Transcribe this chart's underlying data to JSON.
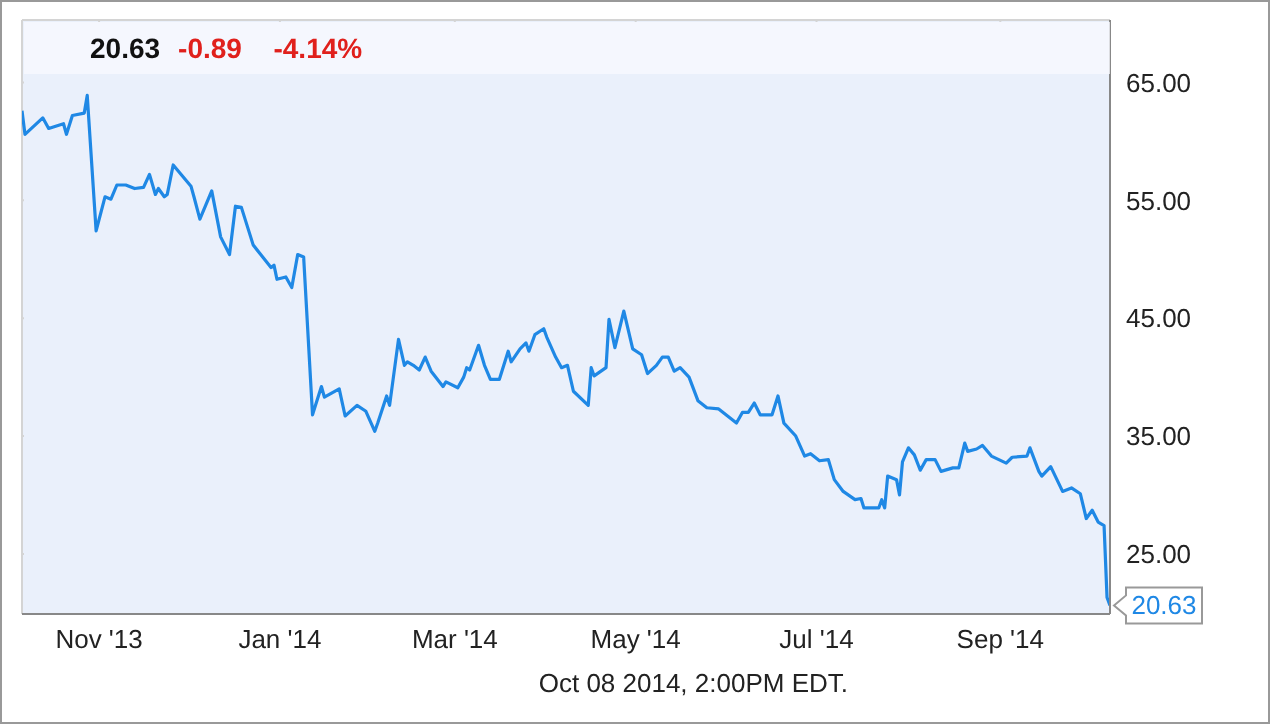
{
  "chart_data": {
    "type": "line",
    "title": "20.63",
    "subtitle": "-0.89  -4.14%",
    "annotations": [
      {
        "text": "20.63",
        "x": "2014-10-08",
        "y": 20.63
      },
      "Oct 08 2014, 2:00PM EDT."
    ],
    "x": [
      "2013-10-06",
      "2013-10-07",
      "2013-10-13",
      "2013-10-15",
      "2013-10-20",
      "2013-10-21",
      "2013-10-23",
      "2013-10-27",
      "2013-10-28",
      "2013-10-31",
      "2013-11-03",
      "2013-11-05",
      "2013-11-07",
      "2013-11-10",
      "2013-11-13",
      "2013-11-16",
      "2013-11-18",
      "2013-11-20",
      "2013-11-21",
      "2013-11-23",
      "2013-11-24",
      "2013-11-26",
      "2013-12-02",
      "2013-12-03",
      "2013-12-05",
      "2013-12-09",
      "2013-12-12",
      "2013-12-15",
      "2013-12-17",
      "2013-12-19",
      "2013-12-23",
      "2013-12-29",
      "2013-12-30",
      "2013-12-31",
      "2014-01-03",
      "2014-01-05",
      "2014-01-07",
      "2014-01-09",
      "2014-01-12",
      "2014-01-15",
      "2014-01-16",
      "2014-01-21",
      "2014-01-23",
      "2014-01-27",
      "2014-01-30",
      "2014-02-02",
      "2014-02-03",
      "2014-02-06",
      "2014-02-07",
      "2014-02-10",
      "2014-02-12",
      "2014-02-13",
      "2014-02-15",
      "2014-02-17",
      "2014-02-19",
      "2014-02-21",
      "2014-02-25",
      "2014-02-26",
      "2014-03-02",
      "2014-03-04",
      "2014-03-05",
      "2014-03-06",
      "2014-03-09",
      "2014-03-11",
      "2014-03-13",
      "2014-03-16",
      "2014-03-19",
      "2014-03-20",
      "2014-03-23",
      "2014-03-25",
      "2014-03-26",
      "2014-03-28",
      "2014-03-31",
      "2014-04-01",
      "2014-04-04",
      "2014-04-06",
      "2014-04-08",
      "2014-04-10",
      "2014-04-15",
      "2014-04-16",
      "2014-04-17",
      "2014-04-21",
      "2014-04-22",
      "2014-04-24",
      "2014-04-27",
      "2014-04-30",
      "2014-05-03",
      "2014-05-05",
      "2014-05-08",
      "2014-05-10",
      "2014-05-12",
      "2014-05-14",
      "2014-05-16",
      "2014-05-19",
      "2014-05-22",
      "2014-05-25",
      "2014-05-29",
      "2014-06-04",
      "2014-06-06",
      "2014-06-08",
      "2014-06-10",
      "2014-06-12",
      "2014-06-16",
      "2014-06-18",
      "2014-06-20",
      "2014-06-24",
      "2014-06-27",
      "2014-06-29",
      "2014-07-02",
      "2014-07-05",
      "2014-07-07",
      "2014-07-10",
      "2014-07-14",
      "2014-07-16",
      "2014-07-17",
      "2014-07-22",
      "2014-07-23",
      "2014-07-24",
      "2014-07-25",
      "2014-07-28",
      "2014-07-29",
      "2014-07-30",
      "2014-08-01",
      "2014-08-03",
      "2014-08-05",
      "2014-08-07",
      "2014-08-10",
      "2014-08-12",
      "2014-08-16",
      "2014-08-18",
      "2014-08-20",
      "2014-08-21",
      "2014-08-24",
      "2014-08-26",
      "2014-08-29",
      "2014-09-03",
      "2014-09-05",
      "2014-09-10",
      "2014-09-11",
      "2014-09-14",
      "2014-09-15",
      "2014-09-18",
      "2014-09-22",
      "2014-09-25",
      "2014-09-28",
      "2014-09-30",
      "2014-10-02",
      "2014-10-04",
      "2014-10-06",
      "2014-10-07",
      "2014-10-08"
    ],
    "series": [
      {
        "color": "#1f88e5",
        "values": [
          62.6,
          60.6,
          62.0,
          61.1,
          61.5,
          60.6,
          62.2,
          62.4,
          63.9,
          52.4,
          55.3,
          55.1,
          56.3,
          56.3,
          56.0,
          56.1,
          57.2,
          55.5,
          56.0,
          55.3,
          55.5,
          58.0,
          56.2,
          55.3,
          53.4,
          55.8,
          51.9,
          50.4,
          54.5,
          54.4,
          51.2,
          49.3,
          49.5,
          48.3,
          48.5,
          47.6,
          50.4,
          50.2,
          36.8,
          39.2,
          38.3,
          39.0,
          36.7,
          37.6,
          37.1,
          35.4,
          36.1,
          38.4,
          37.6,
          43.2,
          41.0,
          41.3,
          41.0,
          40.6,
          41.7,
          40.5,
          39.2,
          39.6,
          39.1,
          40.0,
          40.8,
          40.6,
          42.7,
          41.0,
          39.8,
          39.8,
          42.2,
          41.3,
          42.4,
          42.9,
          42.2,
          43.6,
          44.1,
          43.4,
          41.7,
          40.8,
          41.0,
          38.8,
          37.6,
          40.8,
          40.1,
          40.8,
          44.9,
          42.5,
          45.6,
          42.4,
          41.9,
          40.3,
          41.0,
          41.7,
          41.7,
          40.5,
          40.8,
          40.0,
          38.0,
          37.4,
          37.3,
          36.1,
          37.0,
          37.0,
          37.8,
          36.8,
          36.8,
          38.4,
          36.1,
          35.0,
          33.3,
          33.5,
          32.9,
          33.0,
          31.3,
          30.3,
          29.6,
          29.7,
          28.9,
          28.9,
          29.6,
          28.9,
          31.6,
          31.3,
          30.0,
          32.8,
          34.0,
          33.4,
          32.1,
          33.0,
          33.0,
          32.0,
          32.3,
          32.3,
          34.4,
          33.7,
          33.9,
          34.2,
          33.3,
          32.7,
          33.2,
          33.3,
          34.0,
          32.0,
          31.6,
          32.4,
          30.3,
          30.6,
          30.1,
          28.0,
          28.7,
          27.7,
          27.4,
          21.3,
          20.63
        ]
      }
    ],
    "xlim": [
      "2013-10-06",
      "2014-10-08"
    ],
    "xticks": [
      {
        "value": "2013-11-01",
        "label": "Nov '13"
      },
      {
        "value": "2014-01-01",
        "label": "Jan '14"
      },
      {
        "value": "2014-03-01",
        "label": "Mar '14"
      },
      {
        "value": "2014-05-01",
        "label": "May '14"
      },
      {
        "value": "2014-07-01",
        "label": "Jul '14"
      },
      {
        "value": "2014-09-01",
        "label": "Sep '14"
      }
    ],
    "ylim": [
      19.9,
      70.3
    ],
    "yticks": [
      {
        "value": 25,
        "label": "25.00"
      },
      {
        "value": 35,
        "label": "35.00"
      },
      {
        "value": 45,
        "label": "45.00"
      },
      {
        "value": 55,
        "label": "55.00"
      },
      {
        "value": 65,
        "label": "65.00"
      }
    ],
    "grid": true,
    "marker": "none",
    "line_style": "solid"
  }
}
